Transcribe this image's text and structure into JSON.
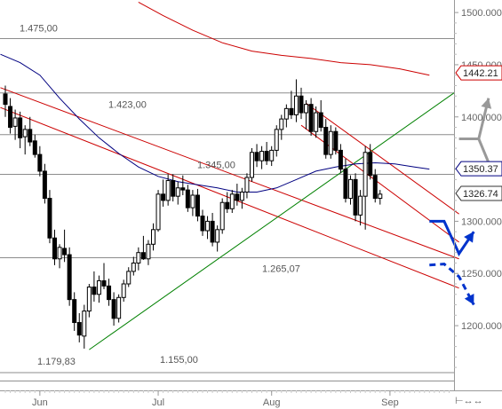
{
  "chart_data": {
    "type": "candlestick",
    "y_axis_side": "right",
    "ylim": [
      1138,
      1512
    ],
    "y_ticks": [
      "1500.000",
      "1450.000",
      "1400.000",
      "1350.000",
      "1300.000",
      "1250.000",
      "1200.000"
    ],
    "y_tick_values": [
      1500,
      1450,
      1400,
      1350,
      1300,
      1250,
      1200
    ],
    "x_ticks": [
      "Jun",
      "Jul",
      "Aug",
      "Sep"
    ],
    "x_tick_index": [
      7,
      31,
      54,
      78
    ],
    "horizontal_levels": [
      {
        "label": "1.475,00",
        "value": 1475
      },
      {
        "label": "1.423,00",
        "value": 1423
      },
      {
        "label": "1.345,00",
        "value": 1345
      },
      {
        "label": "1.265,07",
        "value": 1265.07
      },
      {
        "label": "1.155,00",
        "value": 1155
      }
    ],
    "unlabeled_levels": [
      1383,
      1147
    ],
    "annotations": [
      {
        "label": "1.179,83",
        "value": 1179.83
      }
    ],
    "price_tags": [
      {
        "label": "1442.21",
        "value": 1442.21,
        "color": "#cc0000"
      },
      {
        "label": "1350.37",
        "value": 1350.37,
        "color": "#000080"
      },
      {
        "label": "1326.74",
        "value": 1326.74,
        "color": "#333333"
      }
    ],
    "trendlines": [
      {
        "name": "falling-resistance",
        "color": "#cc0000",
        "from": [
          -1,
          1428
        ],
        "to": [
          92,
          1264
        ]
      },
      {
        "name": "falling-support",
        "color": "#cc0000",
        "from": [
          -1,
          1409
        ],
        "to": [
          92,
          1236
        ]
      },
      {
        "name": "rising-support",
        "color": "#008000",
        "from": [
          17,
          1177
        ],
        "to": [
          91,
          1423
        ]
      },
      {
        "name": "channel-upper",
        "color": "#cc0000",
        "from": [
          61,
          1413
        ],
        "to": [
          92,
          1307
        ]
      },
      {
        "name": "channel-lower",
        "color": "#cc0000",
        "from": [
          60,
          1392
        ],
        "to": [
          92,
          1280
        ]
      }
    ],
    "moving_averages": [
      {
        "name": "ma-long",
        "color": "#cc0000",
        "points": [
          [
            27,
            1510
          ],
          [
            32,
            1497
          ],
          [
            38,
            1483
          ],
          [
            44,
            1471
          ],
          [
            50,
            1463
          ],
          [
            56,
            1459
          ],
          [
            62,
            1456
          ],
          [
            68,
            1452
          ],
          [
            74,
            1450
          ],
          [
            80,
            1446
          ],
          [
            86,
            1440
          ]
        ]
      },
      {
        "name": "ma-short",
        "color": "#000080",
        "points": [
          [
            -1,
            1460
          ],
          [
            3,
            1452
          ],
          [
            7,
            1440
          ],
          [
            11,
            1418
          ],
          [
            15,
            1398
          ],
          [
            19,
            1380
          ],
          [
            23,
            1365
          ],
          [
            27,
            1352
          ],
          [
            31,
            1343
          ],
          [
            35,
            1338
          ],
          [
            39,
            1335
          ],
          [
            43,
            1332
          ],
          [
            47,
            1328
          ],
          [
            51,
            1328
          ],
          [
            55,
            1332
          ],
          [
            59,
            1340
          ],
          [
            63,
            1348
          ],
          [
            67,
            1352
          ],
          [
            71,
            1355
          ],
          [
            75,
            1356
          ],
          [
            79,
            1355
          ],
          [
            83,
            1352
          ],
          [
            86,
            1350
          ]
        ]
      }
    ],
    "projections": [
      {
        "name": "bull-path",
        "color": "#999999",
        "style": "solid",
        "points": [
          [
            92,
            1379
          ],
          [
            96,
            1379
          ],
          [
            98,
            1418
          ]
        ]
      },
      {
        "name": "bull-path-down",
        "color": "#999999",
        "style": "solid",
        "points": [
          [
            96,
            1379
          ],
          [
            99,
            1345
          ]
        ]
      },
      {
        "name": "blue-path",
        "color": "#0033cc",
        "style": "solid",
        "points": [
          [
            86,
            1300
          ],
          [
            89,
            1300
          ],
          [
            92,
            1269
          ],
          [
            95,
            1290
          ]
        ]
      },
      {
        "name": "blue-path-dashed",
        "color": "#0033cc",
        "style": "dashed",
        "points": [
          [
            86,
            1258
          ],
          [
            89,
            1259
          ],
          [
            92,
            1247
          ],
          [
            95,
            1220
          ]
        ]
      }
    ],
    "candles": [
      [
        1422,
        1430,
        1400,
        1412
      ],
      [
        1410,
        1418,
        1384,
        1390
      ],
      [
        1391,
        1407,
        1378,
        1399
      ],
      [
        1399,
        1405,
        1370,
        1380
      ],
      [
        1381,
        1392,
        1364,
        1388
      ],
      [
        1388,
        1400,
        1372,
        1376
      ],
      [
        1377,
        1383,
        1361,
        1364
      ],
      [
        1364,
        1372,
        1343,
        1348
      ],
      [
        1348,
        1355,
        1317,
        1322
      ],
      [
        1322,
        1330,
        1279,
        1284
      ],
      [
        1284,
        1292,
        1258,
        1264
      ],
      [
        1264,
        1278,
        1255,
        1275
      ],
      [
        1274,
        1292,
        1261,
        1268
      ],
      [
        1268,
        1275,
        1219,
        1225
      ],
      [
        1225,
        1232,
        1195,
        1203
      ],
      [
        1203,
        1212,
        1184,
        1191
      ],
      [
        1190,
        1220,
        1178,
        1214
      ],
      [
        1214,
        1240,
        1208,
        1237
      ],
      [
        1237,
        1252,
        1223,
        1230
      ],
      [
        1230,
        1248,
        1222,
        1243
      ],
      [
        1243,
        1260,
        1235,
        1238
      ],
      [
        1238,
        1245,
        1219,
        1225
      ],
      [
        1225,
        1232,
        1200,
        1207
      ],
      [
        1207,
        1230,
        1203,
        1227
      ],
      [
        1227,
        1244,
        1223,
        1240
      ],
      [
        1240,
        1256,
        1237,
        1252
      ],
      [
        1252,
        1266,
        1248,
        1260
      ],
      [
        1260,
        1275,
        1253,
        1270
      ],
      [
        1270,
        1286,
        1263,
        1264
      ],
      [
        1264,
        1282,
        1258,
        1278
      ],
      [
        1278,
        1298,
        1272,
        1292
      ],
      [
        1292,
        1330,
        1290,
        1326
      ],
      [
        1326,
        1340,
        1314,
        1320
      ],
      [
        1320,
        1345,
        1315,
        1339
      ],
      [
        1339,
        1345,
        1319,
        1324
      ],
      [
        1324,
        1338,
        1316,
        1332
      ],
      [
        1332,
        1344,
        1325,
        1330
      ],
      [
        1330,
        1335,
        1309,
        1313
      ],
      [
        1313,
        1330,
        1305,
        1325
      ],
      [
        1325,
        1331,
        1300,
        1305
      ],
      [
        1305,
        1311,
        1286,
        1291
      ],
      [
        1291,
        1305,
        1283,
        1300
      ],
      [
        1300,
        1308,
        1276,
        1280
      ],
      [
        1280,
        1296,
        1271,
        1292
      ],
      [
        1292,
        1322,
        1288,
        1318
      ],
      [
        1318,
        1328,
        1308,
        1312
      ],
      [
        1312,
        1330,
        1308,
        1326
      ],
      [
        1326,
        1336,
        1315,
        1320
      ],
      [
        1320,
        1332,
        1312,
        1328
      ],
      [
        1328,
        1346,
        1322,
        1342
      ],
      [
        1342,
        1370,
        1338,
        1366
      ],
      [
        1366,
        1374,
        1352,
        1358
      ],
      [
        1358,
        1372,
        1350,
        1367
      ],
      [
        1367,
        1376,
        1354,
        1358
      ],
      [
        1358,
        1372,
        1353,
        1368
      ],
      [
        1368,
        1392,
        1362,
        1388
      ],
      [
        1388,
        1402,
        1378,
        1398
      ],
      [
        1398,
        1412,
        1390,
        1408
      ],
      [
        1408,
        1425,
        1398,
        1402
      ],
      [
        1402,
        1436,
        1395,
        1420
      ],
      [
        1420,
        1428,
        1398,
        1404
      ],
      [
        1404,
        1416,
        1388,
        1412
      ],
      [
        1412,
        1418,
        1382,
        1386
      ],
      [
        1386,
        1410,
        1380,
        1404
      ],
      [
        1404,
        1416,
        1386,
        1390
      ],
      [
        1390,
        1398,
        1360,
        1364
      ],
      [
        1364,
        1392,
        1360,
        1386
      ],
      [
        1386,
        1390,
        1364,
        1368
      ],
      [
        1368,
        1374,
        1346,
        1350
      ],
      [
        1350,
        1360,
        1318,
        1322
      ],
      [
        1322,
        1344,
        1316,
        1340
      ],
      [
        1340,
        1346,
        1300,
        1306
      ],
      [
        1306,
        1330,
        1296,
        1324
      ],
      [
        1324,
        1372,
        1292,
        1366
      ],
      [
        1366,
        1374,
        1340,
        1344
      ],
      [
        1344,
        1350,
        1318,
        1322
      ],
      [
        1322,
        1330,
        1316,
        1326
      ]
    ]
  }
}
